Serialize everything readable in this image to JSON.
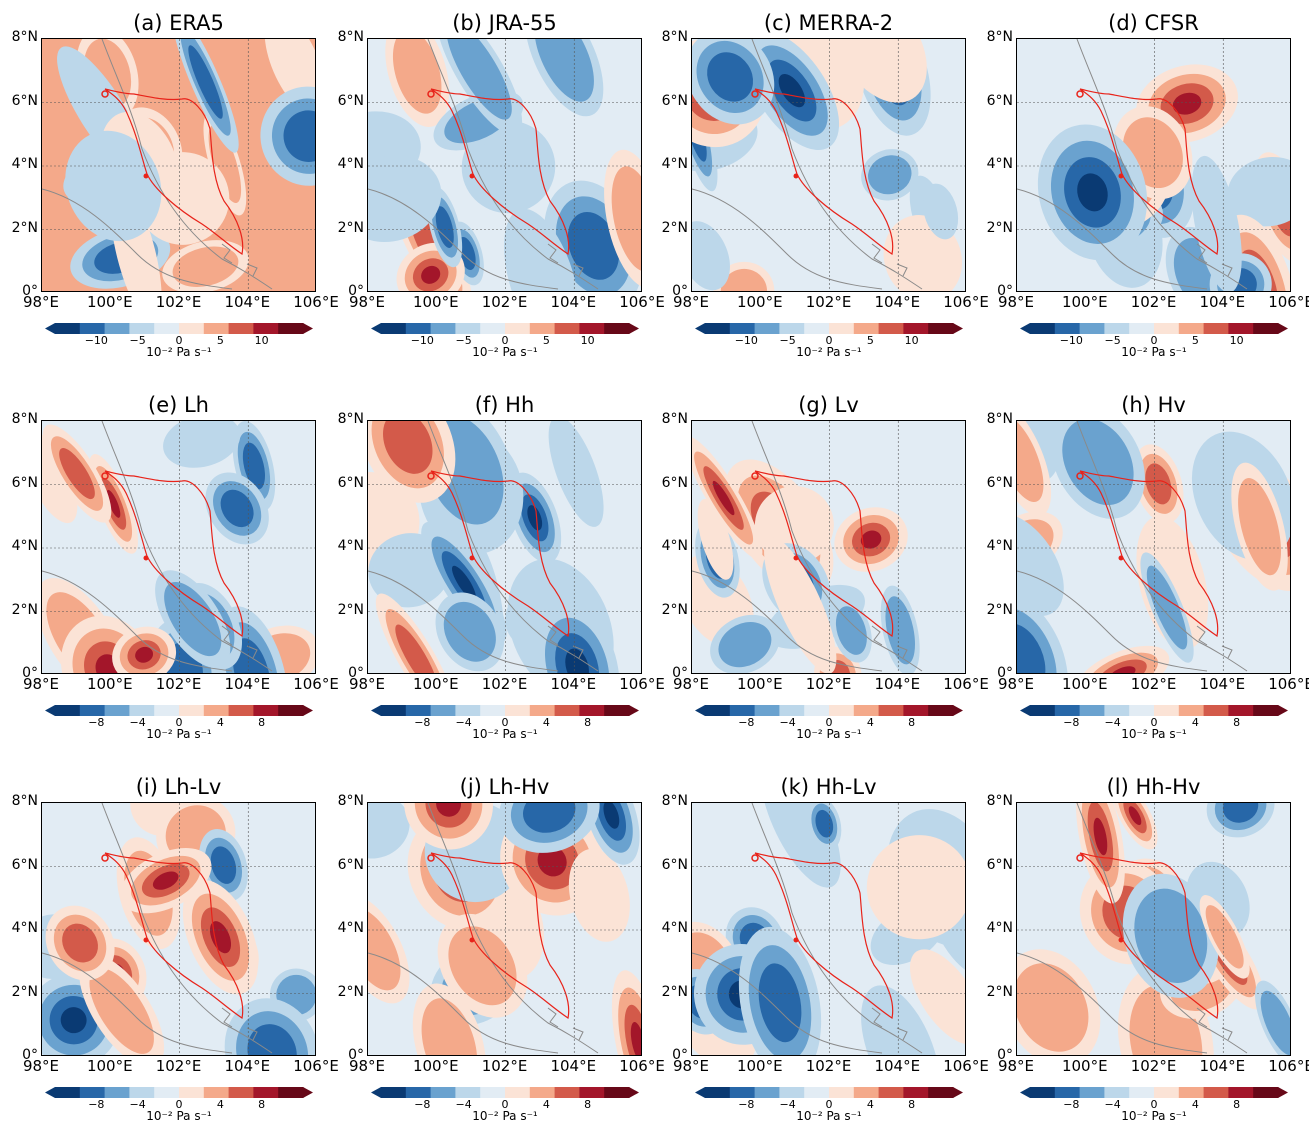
{
  "figure": {
    "panels": [
      {
        "label": "(a) ERA5",
        "colorbar": "cb_era5"
      },
      {
        "label": "(b) JRA-55",
        "colorbar": "cb_era5"
      },
      {
        "label": "(c) MERRA-2",
        "colorbar": "cb_era5"
      },
      {
        "label": "(d) CFSR",
        "colorbar": "cb_era5"
      },
      {
        "label": "(e) Lh",
        "colorbar": "cb_exp"
      },
      {
        "label": "(f) Hh",
        "colorbar": "cb_exp"
      },
      {
        "label": "(g) Lv",
        "colorbar": "cb_exp"
      },
      {
        "label": "(h) Hv",
        "colorbar": "cb_exp"
      },
      {
        "label": "(i) Lh-Lv",
        "colorbar": "cb_diff"
      },
      {
        "label": "(j) Lh-Hv",
        "colorbar": "cb_diff"
      },
      {
        "label": "(k) Hh-Lv",
        "colorbar": "cb_diff"
      },
      {
        "label": "(l) Hh-Hv",
        "colorbar": "cb_diff"
      }
    ],
    "lat_labels": [
      "8°N",
      "6°N",
      "4°N",
      "2°N",
      "0°"
    ],
    "lon_labels": [
      "98°E",
      "100°E",
      "102°E",
      "104°E",
      "106°E"
    ],
    "colorbars": {
      "cb_era5": {
        "ticks": [
          "−10",
          "−5",
          "0",
          "5",
          "10"
        ],
        "unit": "10⁻² Pa s⁻¹"
      },
      "cb_exp": {
        "ticks": [
          "−8",
          "−4",
          "0",
          "4",
          "8"
        ],
        "unit": "10⁻² Pa s⁻¹"
      },
      "cb_diff": {
        "ticks": [
          "−8",
          "−4",
          "0",
          "4",
          "8"
        ],
        "unit": "10⁻² Pa s⁻¹"
      }
    },
    "colors": {
      "palette": [
        "#0a3a73",
        "#2767a8",
        "#6aa2cf",
        "#bcd7ea",
        "#e2ecf4",
        "#fbe3d6",
        "#f4a98a",
        "#d35a4a",
        "#a3162a",
        "#670818"
      ],
      "boundary": "#e8231a",
      "coast": "#8a8a8a"
    }
  }
}
